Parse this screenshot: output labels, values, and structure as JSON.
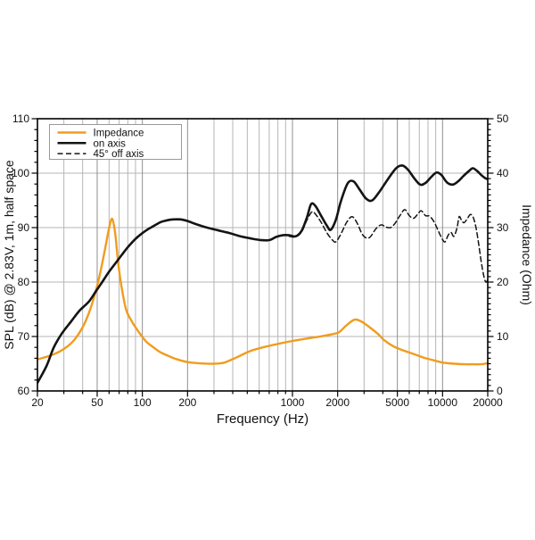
{
  "chart_data": {
    "type": "line",
    "title": "",
    "xlabel": "Frequency (Hz)",
    "ylabel_left": "SPL (dB) @ 2.83V, 1m, half space",
    "ylabel_right": "Impedance (Ohm)",
    "x_scale": "log",
    "x_range": [
      20,
      20000
    ],
    "y_left_range": [
      60,
      110
    ],
    "y_right_range": [
      0,
      50
    ],
    "grid": true,
    "x_ticks_labeled": [
      20,
      50,
      100,
      200,
      1000,
      2000,
      5000,
      10000,
      20000
    ],
    "x_ticks_all": [
      20,
      30,
      40,
      50,
      60,
      70,
      80,
      90,
      100,
      200,
      300,
      400,
      500,
      600,
      700,
      800,
      900,
      1000,
      2000,
      3000,
      4000,
      5000,
      6000,
      7000,
      8000,
      9000,
      10000,
      20000
    ],
    "y_ticks_left": [
      60,
      70,
      80,
      90,
      100,
      110
    ],
    "y_minor_step_left": 2,
    "y_ticks_right": [
      0,
      10,
      20,
      30,
      40,
      50
    ],
    "y_minor_step_right": 1,
    "y_gridlines_left": [
      70,
      80,
      90,
      100
    ],
    "colors": {
      "impedance": "#f09c1e",
      "on_axis": "#141414",
      "off_axis": "#141414",
      "grid_minor": "#b5b5b5",
      "grid_major": "#8f8f8f",
      "frame": "#000000"
    },
    "legend": {
      "position": "top-left",
      "items": [
        {
          "label": "Impedance",
          "color": "#f09c1e",
          "dash": "solid"
        },
        {
          "label": "on axis",
          "color": "#141414",
          "dash": "solid"
        },
        {
          "label": "45° off axis",
          "color": "#141414",
          "dash": "dashed"
        }
      ]
    },
    "series": [
      {
        "name": "Impedance",
        "axis": "right",
        "unit": "Ohm",
        "style": "solid",
        "color": "#f09c1e",
        "width": 2.4,
        "points": [
          [
            20,
            5.8
          ],
          [
            25,
            6.6
          ],
          [
            30,
            7.7
          ],
          [
            35,
            9.3
          ],
          [
            40,
            11.7
          ],
          [
            44,
            14.3
          ],
          [
            48,
            17.5
          ],
          [
            52,
            21.3
          ],
          [
            56,
            25.6
          ],
          [
            60,
            29.9
          ],
          [
            63,
            31.6
          ],
          [
            66,
            28.8
          ],
          [
            69,
            23.5
          ],
          [
            73,
            18.8
          ],
          [
            78,
            14.9
          ],
          [
            85,
            12.8
          ],
          [
            91,
            11.5
          ],
          [
            105,
            9.2
          ],
          [
            120,
            7.9
          ],
          [
            132,
            7.1
          ],
          [
            150,
            6.4
          ],
          [
            166,
            5.9
          ],
          [
            200,
            5.3
          ],
          [
            250,
            5.05
          ],
          [
            300,
            5.0
          ],
          [
            350,
            5.2
          ],
          [
            420,
            6.1
          ],
          [
            520,
            7.3
          ],
          [
            655,
            8.1
          ],
          [
            820,
            8.7
          ],
          [
            1010,
            9.2
          ],
          [
            1300,
            9.7
          ],
          [
            1600,
            10.1
          ],
          [
            1900,
            10.5
          ],
          [
            2050,
            10.8
          ],
          [
            2300,
            12.1
          ],
          [
            2600,
            13.1
          ],
          [
            2900,
            12.7
          ],
          [
            3300,
            11.6
          ],
          [
            3700,
            10.5
          ],
          [
            4100,
            9.3
          ],
          [
            4700,
            8.2
          ],
          [
            5400,
            7.5
          ],
          [
            6400,
            6.8
          ],
          [
            7500,
            6.1
          ],
          [
            8800,
            5.6
          ],
          [
            10100,
            5.2
          ],
          [
            12000,
            5.0
          ],
          [
            14000,
            4.9
          ],
          [
            16000,
            4.9
          ],
          [
            18000,
            4.9
          ],
          [
            20000,
            5.1
          ]
        ]
      },
      {
        "name": "on axis",
        "axis": "left",
        "unit": "dB",
        "style": "solid",
        "color": "#141414",
        "width": 2.6,
        "points": [
          [
            20,
            61.5
          ],
          [
            23,
            64.6
          ],
          [
            25.6,
            67.9
          ],
          [
            29,
            70.5
          ],
          [
            33.6,
            72.8
          ],
          [
            38,
            74.7
          ],
          [
            44,
            76.4
          ],
          [
            49,
            78.3
          ],
          [
            54,
            80.0
          ],
          [
            60,
            81.9
          ],
          [
            66,
            83.4
          ],
          [
            73,
            85.0
          ],
          [
            80,
            86.4
          ],
          [
            89,
            87.8
          ],
          [
            98,
            88.8
          ],
          [
            109,
            89.7
          ],
          [
            119,
            90.3
          ],
          [
            132,
            91.0
          ],
          [
            144,
            91.3
          ],
          [
            160,
            91.5
          ],
          [
            180,
            91.5
          ],
          [
            200,
            91.2
          ],
          [
            230,
            90.6
          ],
          [
            270,
            90.0
          ],
          [
            320,
            89.5
          ],
          [
            380,
            89.0
          ],
          [
            450,
            88.4
          ],
          [
            530,
            88.0
          ],
          [
            620,
            87.7
          ],
          [
            700,
            87.7
          ],
          [
            780,
            88.3
          ],
          [
            860,
            88.6
          ],
          [
            950,
            88.6
          ],
          [
            1050,
            88.4
          ],
          [
            1150,
            89.4
          ],
          [
            1250,
            91.9
          ],
          [
            1330,
            94.3
          ],
          [
            1420,
            94.0
          ],
          [
            1550,
            92.2
          ],
          [
            1700,
            90.3
          ],
          [
            1800,
            89.6
          ],
          [
            1950,
            91.5
          ],
          [
            2100,
            94.8
          ],
          [
            2330,
            98.1
          ],
          [
            2550,
            98.5
          ],
          [
            2800,
            97.0
          ],
          [
            3100,
            95.3
          ],
          [
            3400,
            95.0
          ],
          [
            3800,
            96.6
          ],
          [
            4300,
            98.8
          ],
          [
            4900,
            100.9
          ],
          [
            5400,
            101.4
          ],
          [
            5900,
            100.6
          ],
          [
            6500,
            99.0
          ],
          [
            7100,
            97.9
          ],
          [
            7700,
            98.2
          ],
          [
            8400,
            99.3
          ],
          [
            9100,
            100.1
          ],
          [
            9800,
            99.7
          ],
          [
            10700,
            98.3
          ],
          [
            11700,
            97.9
          ],
          [
            12700,
            98.5
          ],
          [
            13800,
            99.5
          ],
          [
            15000,
            100.4
          ],
          [
            15900,
            100.9
          ],
          [
            17000,
            100.4
          ],
          [
            18200,
            99.6
          ],
          [
            19200,
            99.1
          ],
          [
            20000,
            98.9
          ]
        ]
      },
      {
        "name": "45° off axis",
        "axis": "left",
        "unit": "dB",
        "style": "dashed",
        "color": "#141414",
        "width": 1.5,
        "points": [
          [
            950,
            88.4
          ],
          [
            1050,
            88.3
          ],
          [
            1150,
            89.2
          ],
          [
            1250,
            91.4
          ],
          [
            1350,
            92.9
          ],
          [
            1430,
            92.4
          ],
          [
            1550,
            91.0
          ],
          [
            1700,
            89.0
          ],
          [
            1850,
            87.7
          ],
          [
            1950,
            87.4
          ],
          [
            2100,
            88.8
          ],
          [
            2300,
            91.0
          ],
          [
            2500,
            92.0
          ],
          [
            2700,
            90.8
          ],
          [
            2900,
            88.9
          ],
          [
            3100,
            88.1
          ],
          [
            3300,
            88.3
          ],
          [
            3600,
            89.8
          ],
          [
            3900,
            90.5
          ],
          [
            4200,
            90.1
          ],
          [
            4500,
            90.0
          ],
          [
            4800,
            90.7
          ],
          [
            5200,
            92.2
          ],
          [
            5600,
            93.3
          ],
          [
            6000,
            92.2
          ],
          [
            6400,
            91.7
          ],
          [
            6800,
            92.4
          ],
          [
            7200,
            93.1
          ],
          [
            7700,
            92.2
          ],
          [
            8200,
            92.1
          ],
          [
            8800,
            91.0
          ],
          [
            9400,
            89.3
          ],
          [
            10000,
            87.8
          ],
          [
            10400,
            87.4
          ],
          [
            10900,
            88.6
          ],
          [
            11400,
            89.1
          ],
          [
            11900,
            88.4
          ],
          [
            12500,
            90.0
          ],
          [
            12900,
            92.0
          ],
          [
            13400,
            91.3
          ],
          [
            13900,
            90.9
          ],
          [
            14600,
            91.6
          ],
          [
            15300,
            92.4
          ],
          [
            16000,
            91.9
          ],
          [
            16700,
            90.0
          ],
          [
            17400,
            87.0
          ],
          [
            18100,
            83.7
          ],
          [
            18800,
            81.2
          ],
          [
            19400,
            80.0
          ],
          [
            20000,
            80.4
          ]
        ]
      }
    ]
  }
}
